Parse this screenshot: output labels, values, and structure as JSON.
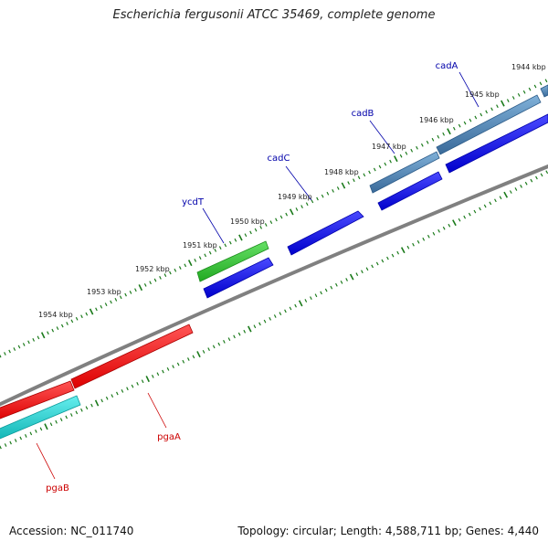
{
  "title": "Escherichia fergusonii ATCC 35469, complete genome",
  "footer": {
    "accession": "Accession: NC_011740",
    "summary": "Topology: circular; Length: 4,588,711 bp; Genes: 4,440"
  },
  "ticks": [
    "1944 kbp",
    "1945 kbp",
    "1946 kbp",
    "1947 kbp",
    "1948 kbp",
    "1949 kbp",
    "1950 kbp",
    "1951 kbp",
    "1952 kbp",
    "1953 kbp",
    "1954 kbp"
  ],
  "genes": [
    {
      "name": "cadA",
      "color": "#0000aa"
    },
    {
      "name": "cadB",
      "color": "#0000aa"
    },
    {
      "name": "cadC",
      "color": "#0000aa"
    },
    {
      "name": "ycdT",
      "color": "#0000aa"
    },
    {
      "name": "pgaA",
      "color": "#cc0000"
    },
    {
      "name": "pgaB",
      "color": "#cc0000"
    }
  ],
  "colors": {
    "backbone": "#808080",
    "tick": "#1a7a1a",
    "tick_label": "#222222",
    "feature_blue": "#0a0ae6",
    "feature_steel": "#4a7fb0",
    "feature_green": "#33bb33",
    "feature_red": "#ee1111",
    "feature_cyan": "#22cccc"
  }
}
